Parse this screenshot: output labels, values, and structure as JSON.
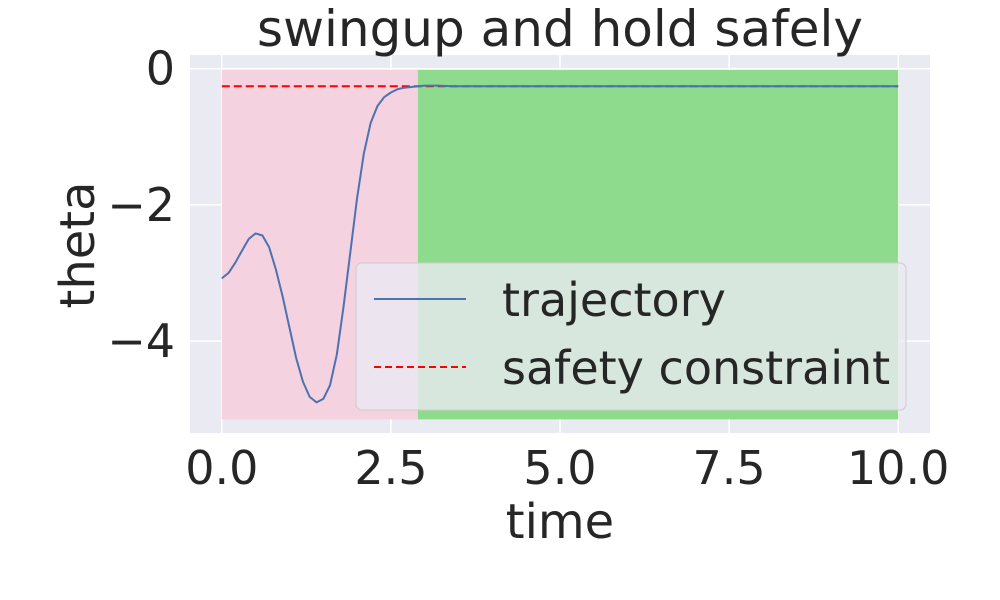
{
  "chart_data": {
    "type": "line",
    "title": "swingup and hold safely",
    "xlabel": "time",
    "ylabel": "theta",
    "xlim": [
      -0.47,
      10.47
    ],
    "ylim": [
      -5.35,
      0.2
    ],
    "xticks": [
      0.0,
      2.5,
      5.0,
      7.5,
      10.0
    ],
    "xtick_labels": [
      "0.0",
      "2.5",
      "5.0",
      "7.5",
      "10.0"
    ],
    "yticks": [
      0,
      -2,
      -4
    ],
    "ytick_labels": [
      "0",
      "−2",
      "−4"
    ],
    "grid": true,
    "legend_position": "lower-right",
    "shaded_regions": [
      {
        "x_start": 0.0,
        "x_end": 2.9,
        "y_start": -5.15,
        "y_end": -0.02,
        "color": "#f4d2df"
      },
      {
        "x_start": 2.9,
        "x_end": 10.0,
        "y_start": -5.15,
        "y_end": -0.02,
        "color": "#8edb8e"
      }
    ],
    "series": [
      {
        "name": "trajectory",
        "style": "solid",
        "color": "#4c72b0",
        "x": [
          0.0,
          0.1,
          0.2,
          0.3,
          0.4,
          0.5,
          0.6,
          0.7,
          0.8,
          0.9,
          1.0,
          1.1,
          1.2,
          1.3,
          1.4,
          1.5,
          1.6,
          1.7,
          1.8,
          1.9,
          2.0,
          2.1,
          2.2,
          2.3,
          2.4,
          2.5,
          2.6,
          2.7,
          2.8,
          2.9,
          3.0,
          3.2,
          3.4,
          3.6,
          4.0,
          5.0,
          6.0,
          7.0,
          8.0,
          9.0,
          10.0
        ],
        "y": [
          -3.08,
          -3.0,
          -2.85,
          -2.67,
          -2.5,
          -2.42,
          -2.45,
          -2.62,
          -2.95,
          -3.35,
          -3.8,
          -4.25,
          -4.6,
          -4.82,
          -4.9,
          -4.85,
          -4.65,
          -4.2,
          -3.5,
          -2.7,
          -1.9,
          -1.25,
          -0.8,
          -0.55,
          -0.42,
          -0.35,
          -0.3,
          -0.28,
          -0.27,
          -0.26,
          -0.25,
          -0.25,
          -0.26,
          -0.26,
          -0.26,
          -0.26,
          -0.26,
          -0.26,
          -0.26,
          -0.26,
          -0.26
        ]
      },
      {
        "name": "safety constraint",
        "style": "dashed",
        "color": "#ff0000",
        "x": [
          0.0,
          10.0
        ],
        "y": [
          -0.26,
          -0.26
        ]
      }
    ]
  }
}
